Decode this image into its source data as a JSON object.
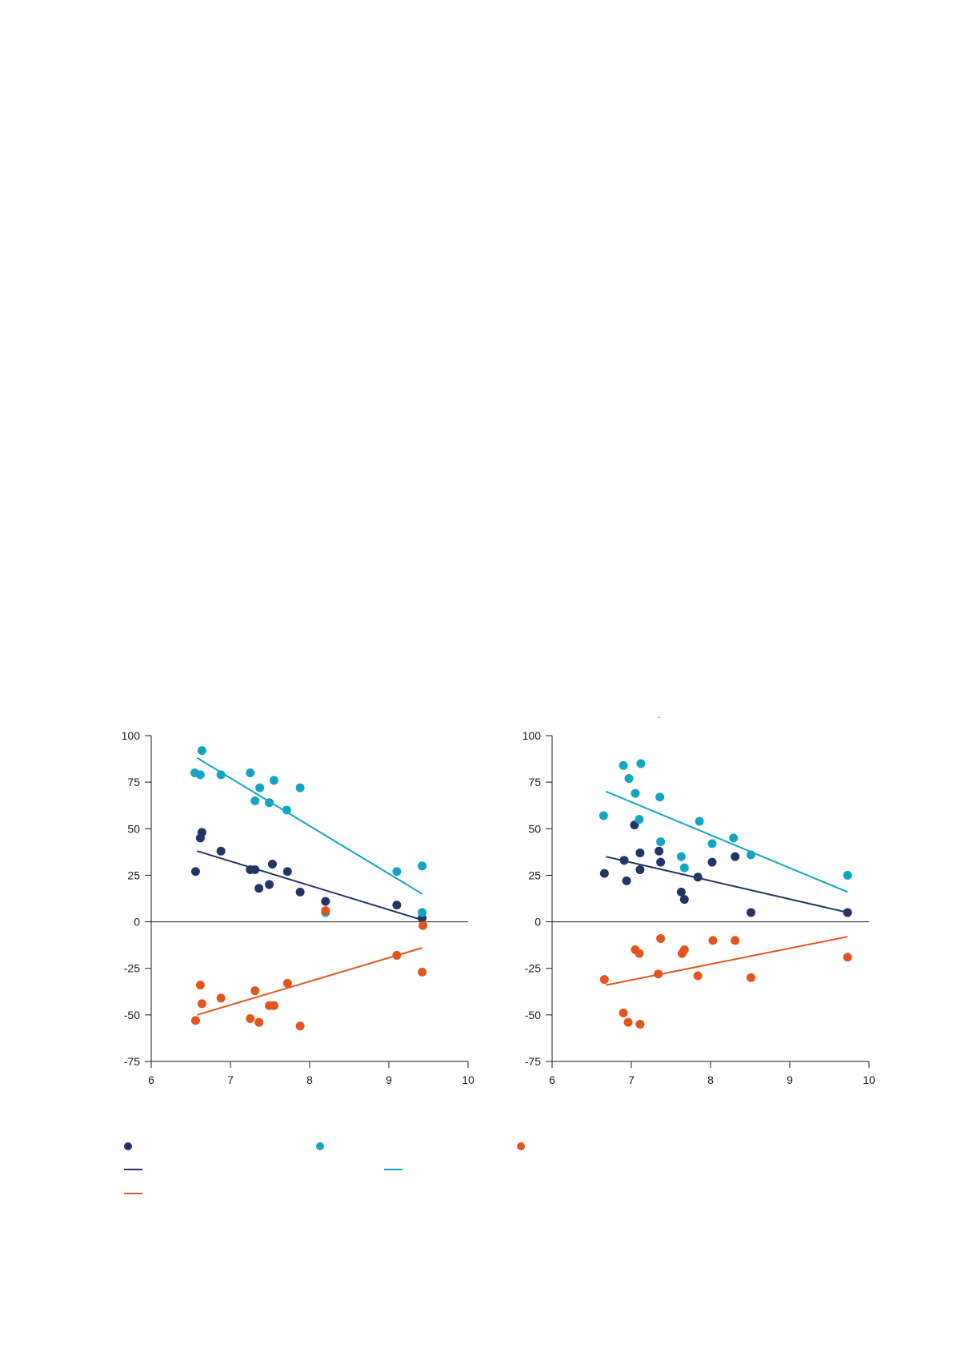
{
  "colors": {
    "navy": "#233567",
    "teal": "#12a5c3",
    "orange": "#e2561d",
    "axis": "#1a1a1a"
  },
  "stray_mark": "-",
  "legend": [
    {
      "kind": "marker",
      "series": 0,
      "icon": "navy-dot-icon"
    },
    {
      "kind": "marker",
      "series": 1,
      "icon": "teal-dot-icon"
    },
    {
      "kind": "marker",
      "series": 2,
      "icon": "orange-dot-icon"
    },
    {
      "kind": "line",
      "series": 0,
      "icon": "navy-line-icon"
    },
    {
      "kind": "line",
      "series": 1,
      "icon": "teal-line-icon"
    },
    {
      "kind": "line",
      "series": 2,
      "icon": "orange-line-icon"
    }
  ],
  "chart_data": [
    {
      "type": "scatter",
      "xlim": [
        6,
        10
      ],
      "ylim": [
        -75,
        100
      ],
      "xticks": [
        6,
        7,
        8,
        9,
        10
      ],
      "yticks": [
        100,
        75,
        50,
        25,
        0,
        -25,
        -50,
        -75
      ],
      "series": [
        {
          "color": "#233567",
          "points": [
            [
              6.56,
              27
            ],
            [
              6.62,
              45
            ],
            [
              6.64,
              48
            ],
            [
              6.88,
              38
            ],
            [
              7.25,
              28
            ],
            [
              7.31,
              28
            ],
            [
              7.36,
              18
            ],
            [
              7.49,
              20
            ],
            [
              7.53,
              31
            ],
            [
              7.72,
              27
            ],
            [
              7.88,
              16
            ],
            [
              8.2,
              11
            ],
            [
              9.1,
              9
            ],
            [
              9.42,
              2
            ]
          ],
          "trend": [
            [
              6.58,
              38
            ],
            [
              9.42,
              1
            ]
          ]
        },
        {
          "color": "#12a5c3",
          "points": [
            [
              6.55,
              80
            ],
            [
              6.62,
              79
            ],
            [
              6.64,
              92
            ],
            [
              6.88,
              79
            ],
            [
              7.25,
              80
            ],
            [
              7.31,
              65
            ],
            [
              7.37,
              72
            ],
            [
              7.49,
              64
            ],
            [
              7.55,
              76
            ],
            [
              7.71,
              60
            ],
            [
              7.88,
              72
            ],
            [
              8.2,
              5
            ],
            [
              9.1,
              27
            ],
            [
              9.42,
              30
            ],
            [
              9.42,
              5
            ]
          ],
          "trend": [
            [
              6.58,
              88
            ],
            [
              9.42,
              15
            ]
          ]
        },
        {
          "color": "#e2561d",
          "points": [
            [
              6.56,
              -53
            ],
            [
              6.62,
              -34
            ],
            [
              6.64,
              -44
            ],
            [
              6.88,
              -41
            ],
            [
              7.25,
              -52
            ],
            [
              7.31,
              -37
            ],
            [
              7.36,
              -54
            ],
            [
              7.49,
              -45
            ],
            [
              7.55,
              -45
            ],
            [
              7.72,
              -33
            ],
            [
              7.88,
              -56
            ],
            [
              8.2,
              6
            ],
            [
              9.1,
              -18
            ],
            [
              9.42,
              -27
            ],
            [
              9.43,
              -2
            ]
          ],
          "trend": [
            [
              6.58,
              -50
            ],
            [
              9.42,
              -14
            ]
          ]
        }
      ]
    },
    {
      "type": "scatter",
      "xlim": [
        6,
        10
      ],
      "ylim": [
        -75,
        100
      ],
      "xticks": [
        6,
        7,
        8,
        9,
        10
      ],
      "yticks": [
        100,
        75,
        50,
        25,
        0,
        -25,
        -50,
        -75
      ],
      "series": [
        {
          "color": "#233567",
          "points": [
            [
              6.66,
              26
            ],
            [
              6.91,
              33
            ],
            [
              6.94,
              22
            ],
            [
              7.04,
              52
            ],
            [
              7.11,
              37
            ],
            [
              7.11,
              28
            ],
            [
              7.35,
              38
            ],
            [
              7.37,
              32
            ],
            [
              7.63,
              16
            ],
            [
              7.67,
              12
            ],
            [
              7.84,
              24
            ],
            [
              8.02,
              32
            ],
            [
              8.31,
              35
            ],
            [
              8.51,
              5
            ],
            [
              9.73,
              5
            ]
          ],
          "trend": [
            [
              6.68,
              35
            ],
            [
              9.73,
              5
            ]
          ]
        },
        {
          "color": "#12a5c3",
          "points": [
            [
              6.65,
              57
            ],
            [
              6.9,
              84
            ],
            [
              6.97,
              77
            ],
            [
              7.05,
              69
            ],
            [
              7.1,
              55
            ],
            [
              7.12,
              85
            ],
            [
              7.36,
              67
            ],
            [
              7.37,
              43
            ],
            [
              7.63,
              35
            ],
            [
              7.67,
              29
            ],
            [
              7.86,
              54
            ],
            [
              8.02,
              42
            ],
            [
              8.29,
              45
            ],
            [
              8.51,
              36
            ],
            [
              9.73,
              25
            ]
          ],
          "trend": [
            [
              6.68,
              70
            ],
            [
              9.73,
              16
            ]
          ]
        },
        {
          "color": "#e2561d",
          "points": [
            [
              6.66,
              -31
            ],
            [
              6.9,
              -49
            ],
            [
              6.96,
              -54
            ],
            [
              7.05,
              -15
            ],
            [
              7.1,
              -17
            ],
            [
              7.11,
              -55
            ],
            [
              7.34,
              -28
            ],
            [
              7.37,
              -9
            ],
            [
              7.64,
              -17
            ],
            [
              7.67,
              -15
            ],
            [
              7.84,
              -29
            ],
            [
              8.03,
              -10
            ],
            [
              8.31,
              -10
            ],
            [
              8.51,
              -30
            ],
            [
              9.73,
              -19
            ]
          ],
          "trend": [
            [
              6.68,
              -34
            ],
            [
              9.73,
              -8
            ]
          ]
        }
      ]
    }
  ]
}
